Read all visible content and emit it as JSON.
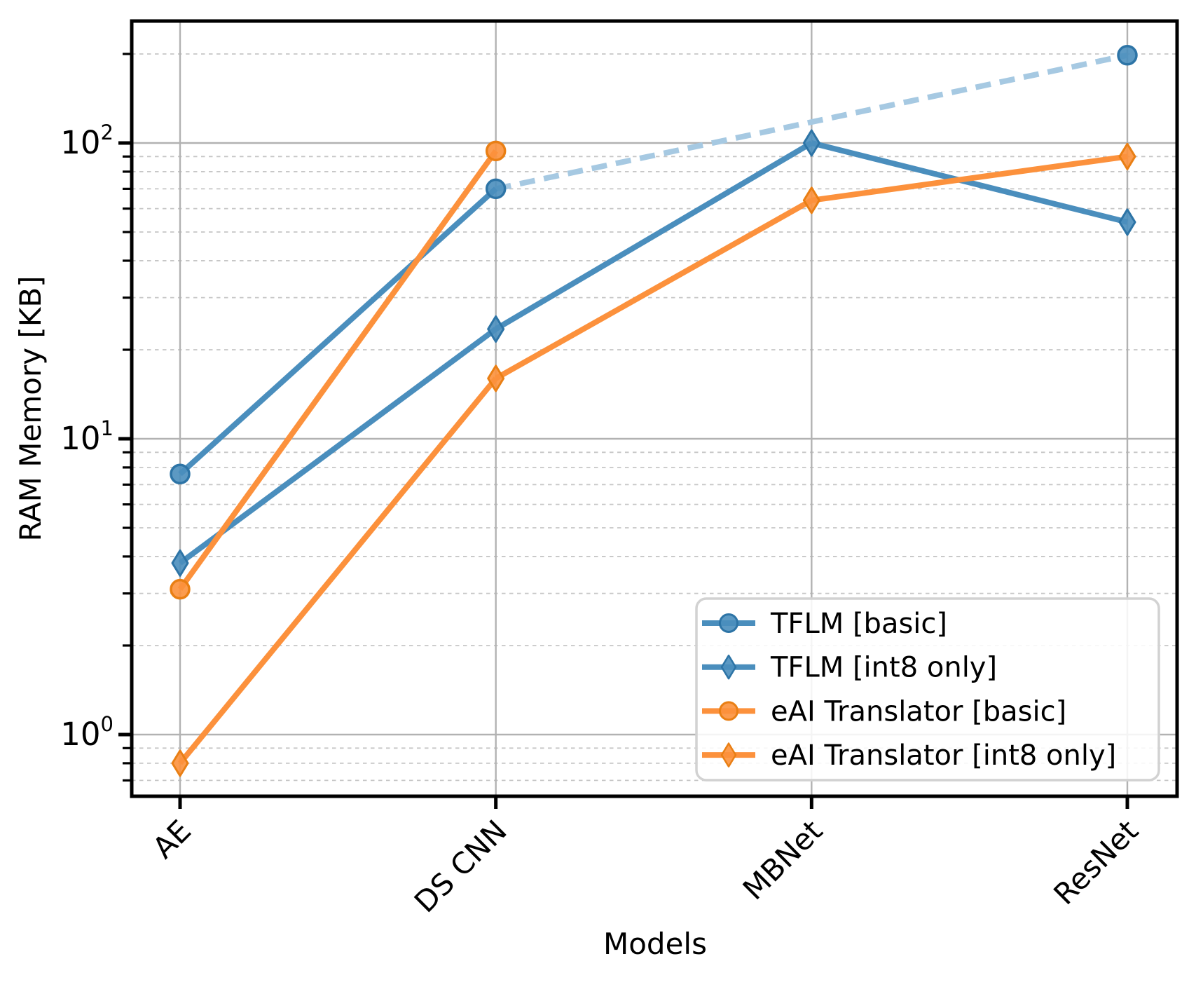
{
  "figure": {
    "background": "#ffffff"
  },
  "chart_data": {
    "type": "line",
    "title": "",
    "xlabel": "Models",
    "ylabel": "RAM Memory [KB]",
    "y_scale": "log",
    "ylim": [
      0.62,
      258
    ],
    "categories": [
      "AE",
      "DS CNN",
      "MBNet",
      "ResNet"
    ],
    "y_major_ticks": {
      "values": [
        1,
        10,
        100
      ],
      "labels": [
        "10⁰",
        "10¹",
        "10²"
      ],
      "exponents": [
        0,
        1,
        2
      ]
    },
    "y_minor_ticks": [
      0.7,
      0.8,
      0.9,
      2,
      3,
      4,
      5,
      6,
      7,
      8,
      9,
      20,
      30,
      40,
      50,
      60,
      70,
      80,
      90,
      200
    ],
    "grid": {
      "major": "solid",
      "minor": "dashed",
      "vertical_at_categories": true
    },
    "legend_position": "lower right",
    "series": [
      {
        "name": "TFLM [basic]",
        "marker": "circle",
        "color": "#4a8ebd",
        "marker_edge": "#2d74a6",
        "gap_dash_color": "#a6c9e2",
        "values": [
          7.6,
          70,
          null,
          198
        ],
        "gap_note": "missing MBNet value bridged by light dashed line"
      },
      {
        "name": "TFLM [int8 only]",
        "marker": "thin-diamond",
        "color": "#4a8ebd",
        "marker_edge": "#2d74a6",
        "gap_dash_color": "#a6c9e2",
        "values": [
          3.8,
          23.5,
          100,
          54
        ]
      },
      {
        "name": "eAI Translator [basic]",
        "marker": "circle",
        "color": "#fc913c",
        "marker_edge": "#e97f14",
        "gap_dash_color": "#fdc89a",
        "values": [
          3.1,
          94,
          null,
          null
        ]
      },
      {
        "name": "eAI Translator [int8 only]",
        "marker": "thin-diamond",
        "color": "#fc913c",
        "marker_edge": "#e97f14",
        "gap_dash_color": "#fdc89a",
        "values": [
          0.8,
          16,
          64,
          90
        ]
      }
    ]
  }
}
